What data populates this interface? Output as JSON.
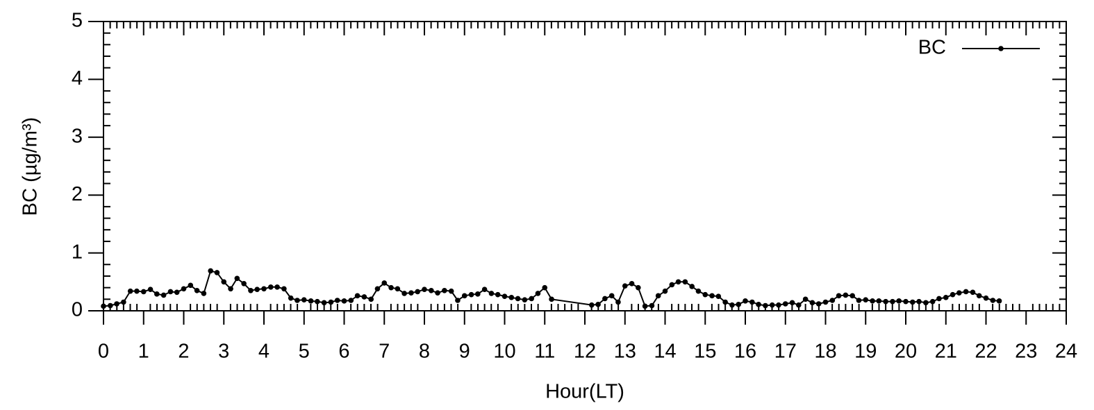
{
  "chart_data": {
    "type": "line",
    "xlabel": "Hour(LT)",
    "ylabel": "BC (µg/m³)",
    "legend_position": "upper right",
    "xlim": [
      0,
      24
    ],
    "xticks": [
      0,
      1,
      2,
      3,
      4,
      5,
      6,
      7,
      8,
      9,
      10,
      11,
      12,
      13,
      14,
      15,
      16,
      17,
      18,
      19,
      20,
      21,
      22,
      23,
      24
    ],
    "ylim": [
      0,
      5
    ],
    "yticks": [
      0,
      1,
      2,
      3,
      4,
      5
    ],
    "x": [
      0,
      0.17,
      0.33,
      0.5,
      0.67,
      0.83,
      1,
      1.17,
      1.33,
      1.5,
      1.67,
      1.83,
      2,
      2.17,
      2.33,
      2.5,
      2.67,
      2.83,
      3,
      3.17,
      3.33,
      3.5,
      3.67,
      3.83,
      4,
      4.17,
      4.33,
      4.5,
      4.67,
      4.83,
      5,
      5.17,
      5.33,
      5.5,
      5.67,
      5.83,
      6,
      6.17,
      6.33,
      6.5,
      6.67,
      6.83,
      7,
      7.17,
      7.33,
      7.5,
      7.67,
      7.83,
      8,
      8.17,
      8.33,
      8.5,
      8.67,
      8.83,
      9,
      9.17,
      9.33,
      9.5,
      9.67,
      9.83,
      10,
      10.17,
      10.33,
      10.5,
      10.67,
      10.83,
      11,
      11.17,
      12.17,
      12.33,
      12.5,
      12.67,
      12.83,
      13,
      13.17,
      13.33,
      13.5,
      13.67,
      13.83,
      14,
      14.17,
      14.33,
      14.5,
      14.67,
      14.83,
      15,
      15.17,
      15.33,
      15.5,
      15.67,
      15.83,
      16,
      16.17,
      16.33,
      16.5,
      16.67,
      16.83,
      17,
      17.17,
      17.33,
      17.5,
      17.67,
      17.83,
      18,
      18.17,
      18.33,
      18.5,
      18.67,
      18.83,
      19,
      19.17,
      19.33,
      19.5,
      19.67,
      19.83,
      20,
      20.17,
      20.33,
      20.5,
      20.67,
      20.83,
      21,
      21.17,
      21.33,
      21.5,
      21.67,
      21.83,
      22,
      22.17,
      22.33
    ],
    "series": [
      {
        "name": "BC",
        "color": "#000000",
        "values": [
          0.08,
          0.09,
          0.12,
          0.15,
          0.34,
          0.34,
          0.33,
          0.37,
          0.29,
          0.27,
          0.33,
          0.32,
          0.38,
          0.44,
          0.35,
          0.3,
          0.69,
          0.66,
          0.5,
          0.38,
          0.56,
          0.47,
          0.35,
          0.37,
          0.38,
          0.41,
          0.41,
          0.38,
          0.22,
          0.18,
          0.19,
          0.17,
          0.16,
          0.14,
          0.15,
          0.18,
          0.17,
          0.18,
          0.26,
          0.24,
          0.2,
          0.38,
          0.48,
          0.4,
          0.38,
          0.3,
          0.31,
          0.33,
          0.37,
          0.35,
          0.31,
          0.35,
          0.34,
          0.18,
          0.26,
          0.28,
          0.29,
          0.37,
          0.3,
          0.28,
          0.25,
          0.23,
          0.21,
          0.19,
          0.21,
          0.3,
          0.4,
          0.2,
          0.1,
          0.11,
          0.21,
          0.26,
          0.15,
          0.43,
          0.47,
          0.4,
          0.08,
          0.09,
          0.26,
          0.34,
          0.45,
          0.5,
          0.5,
          0.42,
          0.34,
          0.28,
          0.26,
          0.25,
          0.15,
          0.1,
          0.11,
          0.17,
          0.15,
          0.11,
          0.09,
          0.1,
          0.1,
          0.12,
          0.14,
          0.1,
          0.2,
          0.14,
          0.12,
          0.15,
          0.18,
          0.26,
          0.27,
          0.26,
          0.18,
          0.19,
          0.17,
          0.17,
          0.16,
          0.16,
          0.17,
          0.16,
          0.15,
          0.16,
          0.14,
          0.16,
          0.21,
          0.23,
          0.28,
          0.31,
          0.33,
          0.32,
          0.26,
          0.22,
          0.18,
          0.17
        ]
      }
    ]
  }
}
